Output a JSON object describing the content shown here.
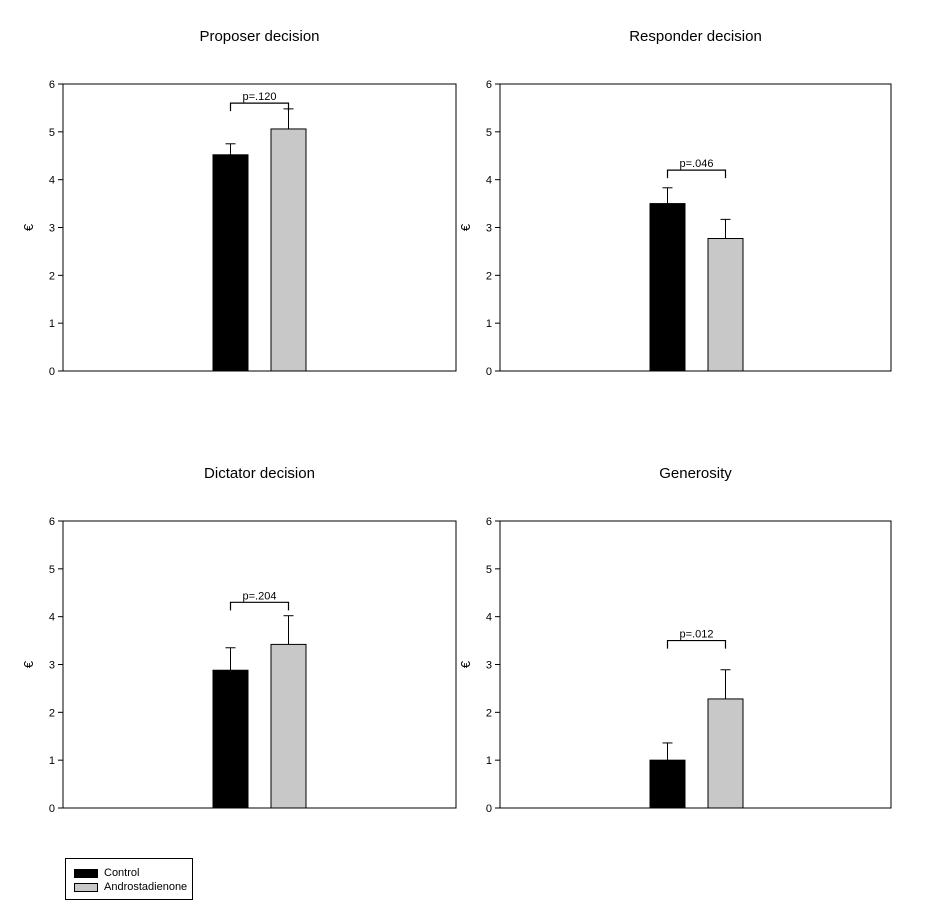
{
  "colors": {
    "control": "#000000",
    "androstadienone": "#c8c8c8",
    "axis": "#000000"
  },
  "legend": [
    {
      "name": "Control",
      "color": "#000000"
    },
    {
      "name": "Androstadienone",
      "color": "#c8c8c8"
    }
  ],
  "chart_data": [
    {
      "type": "bar",
      "title": "Proposer decision",
      "ylabel": "€",
      "ylim": [
        0,
        6
      ],
      "yticks": [
        "0",
        "1",
        "2",
        "3",
        "4",
        "5",
        "6"
      ],
      "categories": [
        "Control",
        "Androstadienone"
      ],
      "values": [
        4.52,
        5.06
      ],
      "errors": [
        0.23,
        0.42
      ],
      "annotation": "p=.120",
      "annotation_y": 5.6
    },
    {
      "type": "bar",
      "title": "Responder decision",
      "ylabel": "€",
      "ylim": [
        0,
        6
      ],
      "yticks": [
        "0",
        "1",
        "2",
        "3",
        "4",
        "5",
        "6"
      ],
      "categories": [
        "Control",
        "Androstadienone"
      ],
      "values": [
        3.5,
        2.77
      ],
      "errors": [
        0.33,
        0.4
      ],
      "annotation": "p=.046",
      "annotation_y": 4.2
    },
    {
      "type": "bar",
      "title": "Dictator decision",
      "ylabel": "€",
      "ylim": [
        0,
        6
      ],
      "yticks": [
        "0",
        "1",
        "2",
        "3",
        "4",
        "5",
        "6"
      ],
      "categories": [
        "Control",
        "Androstadienone"
      ],
      "values": [
        2.88,
        3.42
      ],
      "errors": [
        0.47,
        0.6
      ],
      "annotation": "p=.204",
      "annotation_y": 4.3
    },
    {
      "type": "bar",
      "title": "Generosity",
      "ylabel": "€",
      "ylim": [
        0,
        6
      ],
      "yticks": [
        "0",
        "1",
        "2",
        "3",
        "4",
        "5",
        "6"
      ],
      "categories": [
        "Control",
        "Androstadienone"
      ],
      "values": [
        1.0,
        2.28
      ],
      "errors": [
        0.36,
        0.61
      ],
      "annotation": "p=.012",
      "annotation_y": 3.5
    }
  ]
}
